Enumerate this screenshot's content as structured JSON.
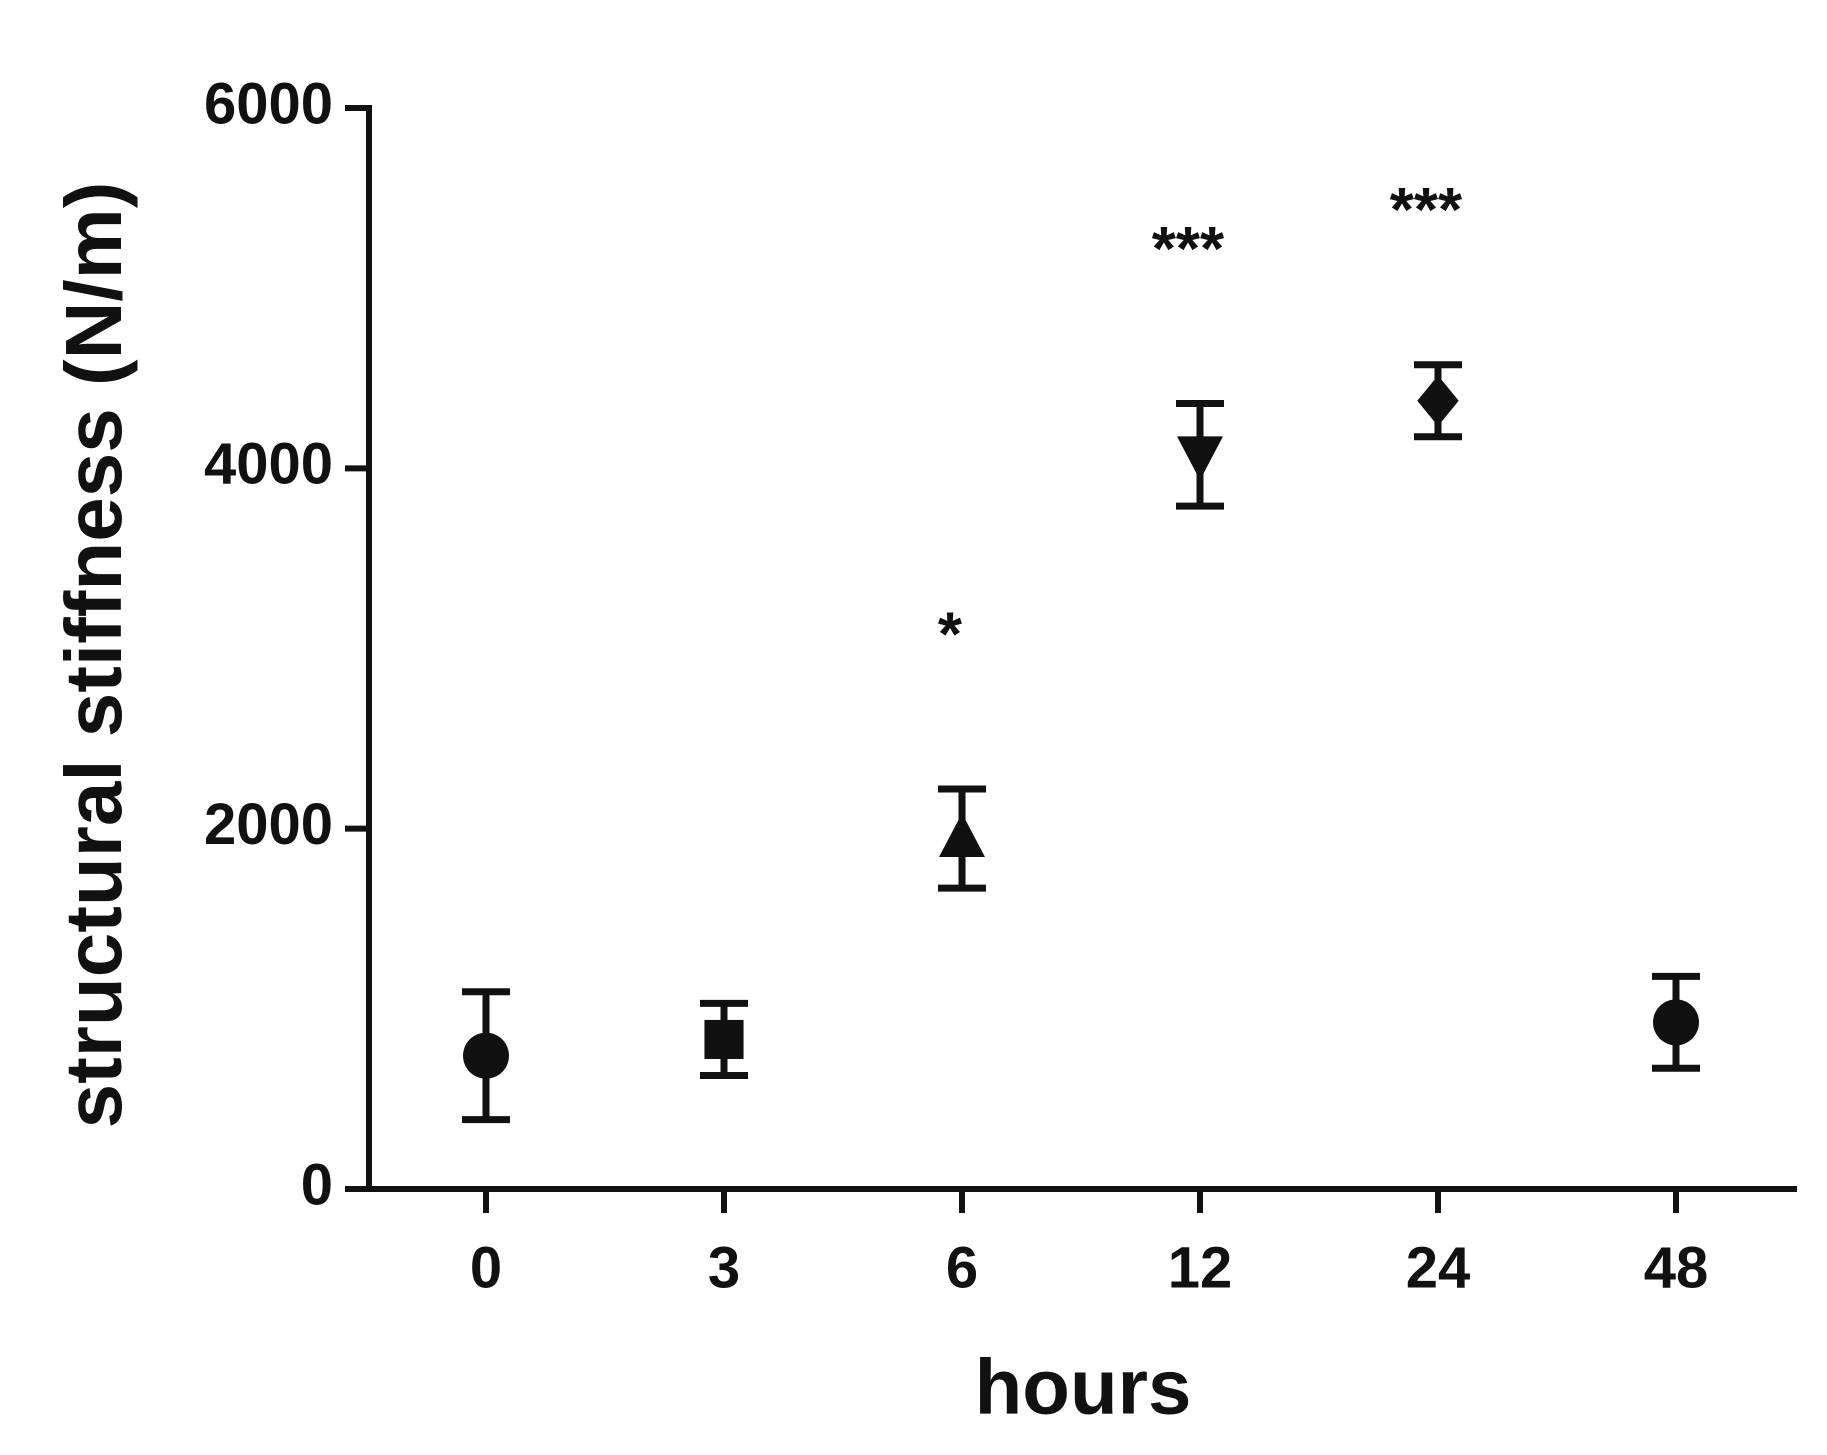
{
  "chart_data": {
    "type": "scatter",
    "x_label": "hours",
    "y_label": "structural stiffness (N/m)",
    "categories": [
      "0",
      "3",
      "6",
      "12",
      "24",
      "48"
    ],
    "series": [
      {
        "color": "#111111",
        "values": [
          740,
          830,
          1945,
          4075,
          4375,
          925
        ],
        "errors": [
          355,
          200,
          275,
          285,
          200,
          255
        ],
        "markers": [
          "circle",
          "square",
          "triangle-up",
          "triangle-down",
          "diamond",
          "circle"
        ]
      }
    ],
    "annotations": [
      {
        "text": "*",
        "category": "6"
      },
      {
        "text": "***",
        "category": "12"
      },
      {
        "text": "***",
        "category": "24"
      }
    ],
    "ylim": [
      0,
      6000
    ],
    "yticks": [
      0,
      2000,
      4000,
      6000
    ],
    "grid": false
  }
}
